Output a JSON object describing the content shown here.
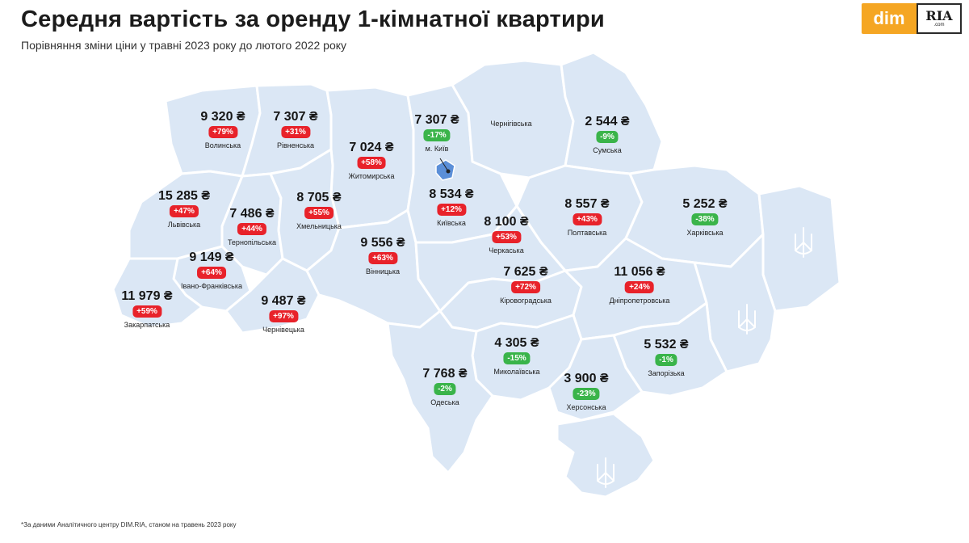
{
  "header": {
    "title": "Середня вартість за оренду 1-кімнатної квартири",
    "subtitle": "Порівняння зміни ціни у травні 2023 року до лютого 2022 року"
  },
  "logo": {
    "dim": "dim",
    "ria": "RIA",
    "ria_small": ".com"
  },
  "colors": {
    "map_fill": "#dbe7f5",
    "border": "#ffffff",
    "increase": "#e8222a",
    "decrease": "#3ab44a"
  },
  "regions": [
    {
      "id": "volynska",
      "name": "Волинська",
      "price": "9 320 ₴",
      "change": "+79%",
      "trend": "up"
    },
    {
      "id": "rivnenska",
      "name": "Рівненська",
      "price": "7 307 ₴",
      "change": "+31%",
      "trend": "up"
    },
    {
      "id": "zhytomyrska",
      "name": "Житомирська",
      "price": "7 024 ₴",
      "change": "+58%",
      "trend": "up"
    },
    {
      "id": "kyiv",
      "name": "м. Київ",
      "price": "7 307 ₴",
      "change": "-17%",
      "trend": "down"
    },
    {
      "id": "chernihivska",
      "name": "Чернігівська",
      "price": "",
      "change": "",
      "trend": ""
    },
    {
      "id": "sumska",
      "name": "Сумська",
      "price": "2 544 ₴",
      "change": "-9%",
      "trend": "down"
    },
    {
      "id": "lvivska",
      "name": "Львівська",
      "price": "15 285 ₴",
      "change": "+47%",
      "trend": "up"
    },
    {
      "id": "ternopilska",
      "name": "Тернопільська",
      "price": "7 486 ₴",
      "change": "+44%",
      "trend": "up"
    },
    {
      "id": "khmelnytska",
      "name": "Хмельницька",
      "price": "8 705 ₴",
      "change": "+55%",
      "trend": "up"
    },
    {
      "id": "kyivska",
      "name": "Київська",
      "price": "8 534 ₴",
      "change": "+12%",
      "trend": "up"
    },
    {
      "id": "poltavska",
      "name": "Полтавська",
      "price": "8 557 ₴",
      "change": "+43%",
      "trend": "up"
    },
    {
      "id": "kharkivska",
      "name": "Харківська",
      "price": "5 252 ₴",
      "change": "-38%",
      "trend": "down"
    },
    {
      "id": "cherkaska",
      "name": "Черкаська",
      "price": "8 100 ₴",
      "change": "+53%",
      "trend": "up"
    },
    {
      "id": "ivano_frankivska",
      "name": "Івано-Франківська",
      "price": "9 149 ₴",
      "change": "+64%",
      "trend": "up"
    },
    {
      "id": "vinnytska",
      "name": "Вінницька",
      "price": "9 556 ₴",
      "change": "+63%",
      "trend": "up"
    },
    {
      "id": "kirovohradska",
      "name": "Кіровоградська",
      "price": "7 625 ₴",
      "change": "+72%",
      "trend": "up"
    },
    {
      "id": "dnipropetrovska",
      "name": "Дніпропетровська",
      "price": "11 056 ₴",
      "change": "+24%",
      "trend": "up"
    },
    {
      "id": "zakarpatska",
      "name": "Закарпатська",
      "price": "11 979 ₴",
      "change": "+59%",
      "trend": "up"
    },
    {
      "id": "chernivetska",
      "name": "Чернівецька",
      "price": "9 487 ₴",
      "change": "+97%",
      "trend": "up"
    },
    {
      "id": "mykolaivska",
      "name": "Миколаївська",
      "price": "4 305 ₴",
      "change": "-15%",
      "trend": "down"
    },
    {
      "id": "zaporizka",
      "name": "Запорізька",
      "price": "5 532 ₴",
      "change": "-1%",
      "trend": "down"
    },
    {
      "id": "odeska",
      "name": "Одеська",
      "price": "7 768 ₴",
      "change": "-2%",
      "trend": "down"
    },
    {
      "id": "khersonska",
      "name": "Херсонська",
      "price": "3 900 ₴",
      "change": "-23%",
      "trend": "down"
    }
  ],
  "footnote": "*За даними Аналітичного центру DIM.RIA, станом на травень 2023 року"
}
